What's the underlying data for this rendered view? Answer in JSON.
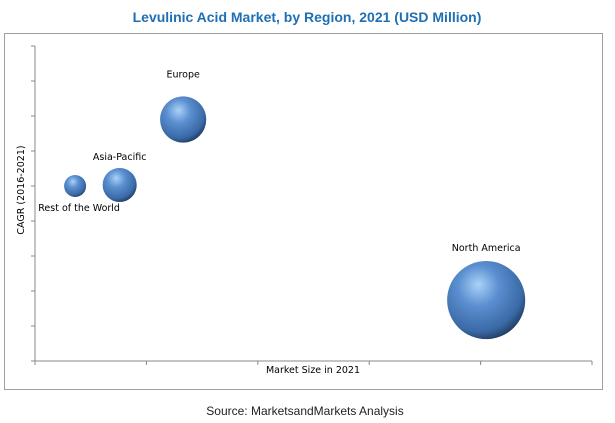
{
  "chart_data": {
    "type": "scatter",
    "subtype": "bubble",
    "title": "Levulinic Acid Market, by Region, 2021 (USD Million)",
    "xlabel": "Market Size in 2021",
    "ylabel": "CAGR (2016-2021)",
    "xlim": [
      0,
      5
    ],
    "ylim": [
      0,
      9
    ],
    "x_ticks": 5,
    "y_ticks": 9,
    "tick_labels_shown": false,
    "grid": false,
    "points": [
      {
        "label": "Rest of the World",
        "x": 0.36,
        "y": 5.0,
        "size": 1.0
      },
      {
        "label": "Asia-Pacific",
        "x": 0.76,
        "y": 5.03,
        "size": 2.4
      },
      {
        "label": "Europe",
        "x": 1.33,
        "y": 6.9,
        "size": 4.4
      },
      {
        "label": "North America",
        "x": 4.05,
        "y": 1.74,
        "size": 12.6
      }
    ],
    "bubble_color": "#4f81bd",
    "source": "Source:  MarketsandMarkets Analysis"
  }
}
